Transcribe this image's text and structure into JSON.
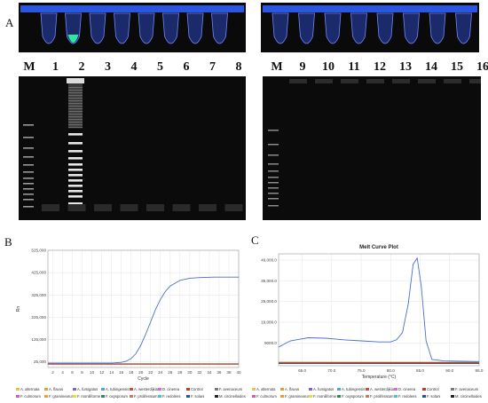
{
  "panels": {
    "a": "A",
    "b": "B",
    "c": "C"
  },
  "gel_lanes_left": [
    "M",
    "1",
    "2",
    "3",
    "4",
    "5",
    "6",
    "7",
    "8"
  ],
  "gel_lanes_right": [
    "M",
    "9",
    "10",
    "11",
    "12",
    "13",
    "14",
    "15",
    "16"
  ],
  "series": [
    {
      "name": "A. alternata",
      "color": "#e8c04a"
    },
    {
      "name": "A. flavus",
      "color": "#e89a3c"
    },
    {
      "name": "A. fumigatus",
      "color": "#8a5ec9"
    },
    {
      "name": "A. tubingensis",
      "color": "#4aa5d9"
    },
    {
      "name": "A. westerdijkiae",
      "color": "#d94545"
    },
    {
      "name": "D. cinerea",
      "color": "#d96ad9"
    },
    {
      "name": "Control",
      "color": "#c0392b"
    },
    {
      "name": "F. avenaceum",
      "color": "#7a7a7a"
    },
    {
      "name": "F. culmorum",
      "color": "#d45ab0"
    },
    {
      "name": "F. graminearum",
      "color": "#f29a2e"
    },
    {
      "name": "F. moniliforme",
      "color": "#e0e040"
    },
    {
      "name": "F. oxysporum",
      "color": "#2e8b57"
    },
    {
      "name": "F. proliferatum",
      "color": "#c77a5a"
    },
    {
      "name": "F. redolens",
      "color": "#45c4c4"
    },
    {
      "name": "F. solani",
      "color": "#2255aa"
    },
    {
      "name": "M. circinelloides",
      "color": "#222222"
    }
  ],
  "chart_data": [
    {
      "type": "line",
      "title": "",
      "xlabel": "Cycle",
      "ylabel": "Rn",
      "x_ticks": [
        2,
        4,
        6,
        8,
        10,
        12,
        14,
        16,
        18,
        20,
        22,
        24,
        26,
        28,
        30,
        32,
        34,
        36,
        38,
        40
      ],
      "y_ticks": [
        "25,000",
        "125,000",
        "225,000",
        "325,000",
        "425,000",
        "525,000"
      ],
      "ylim": [
        0,
        525000
      ],
      "xlim": [
        1,
        40
      ],
      "series": [
        {
          "name": "F. solani",
          "x": [
            1,
            14,
            16,
            17,
            18,
            19,
            20,
            21,
            22,
            23,
            24,
            25,
            26,
            28,
            30,
            32,
            35,
            40
          ],
          "values": [
            20000,
            20000,
            23000,
            28000,
            40000,
            62000,
            100000,
            150000,
            205000,
            260000,
            305000,
            340000,
            365000,
            390000,
            400000,
            403000,
            405000,
            405000
          ]
        },
        {
          "name": "Control",
          "x": [
            1,
            40
          ],
          "values": [
            15000,
            15000
          ]
        }
      ]
    },
    {
      "type": "line",
      "title": "Melt Curve Plot",
      "xlabel": "Temperature (°C)",
      "ylabel": "",
      "x_ticks": [
        "65.0",
        "70.0",
        "75.0",
        "80.0",
        "85.0",
        "90.0",
        "95.0"
      ],
      "y_ticks": [
        "9000.0",
        "19,000.0",
        "29,000.0",
        "39,000.0",
        "49,000.0"
      ],
      "xlim": [
        61,
        95
      ],
      "ylim": [
        -2000,
        52000
      ],
      "series": [
        {
          "name": "F. solani",
          "x": [
            61,
            63,
            66,
            69,
            72,
            75,
            78,
            80,
            81,
            82,
            83,
            83.8,
            84.5,
            85.2,
            86,
            87,
            89,
            95
          ],
          "values": [
            7000,
            10000,
            11500,
            11300,
            10500,
            10000,
            9500,
            9500,
            10500,
            14000,
            28000,
            47000,
            50000,
            36000,
            10000,
            1000,
            300,
            0
          ]
        },
        {
          "name": "Control",
          "x": [
            61,
            95
          ],
          "values": [
            -400,
            -600
          ]
        }
      ]
    }
  ]
}
